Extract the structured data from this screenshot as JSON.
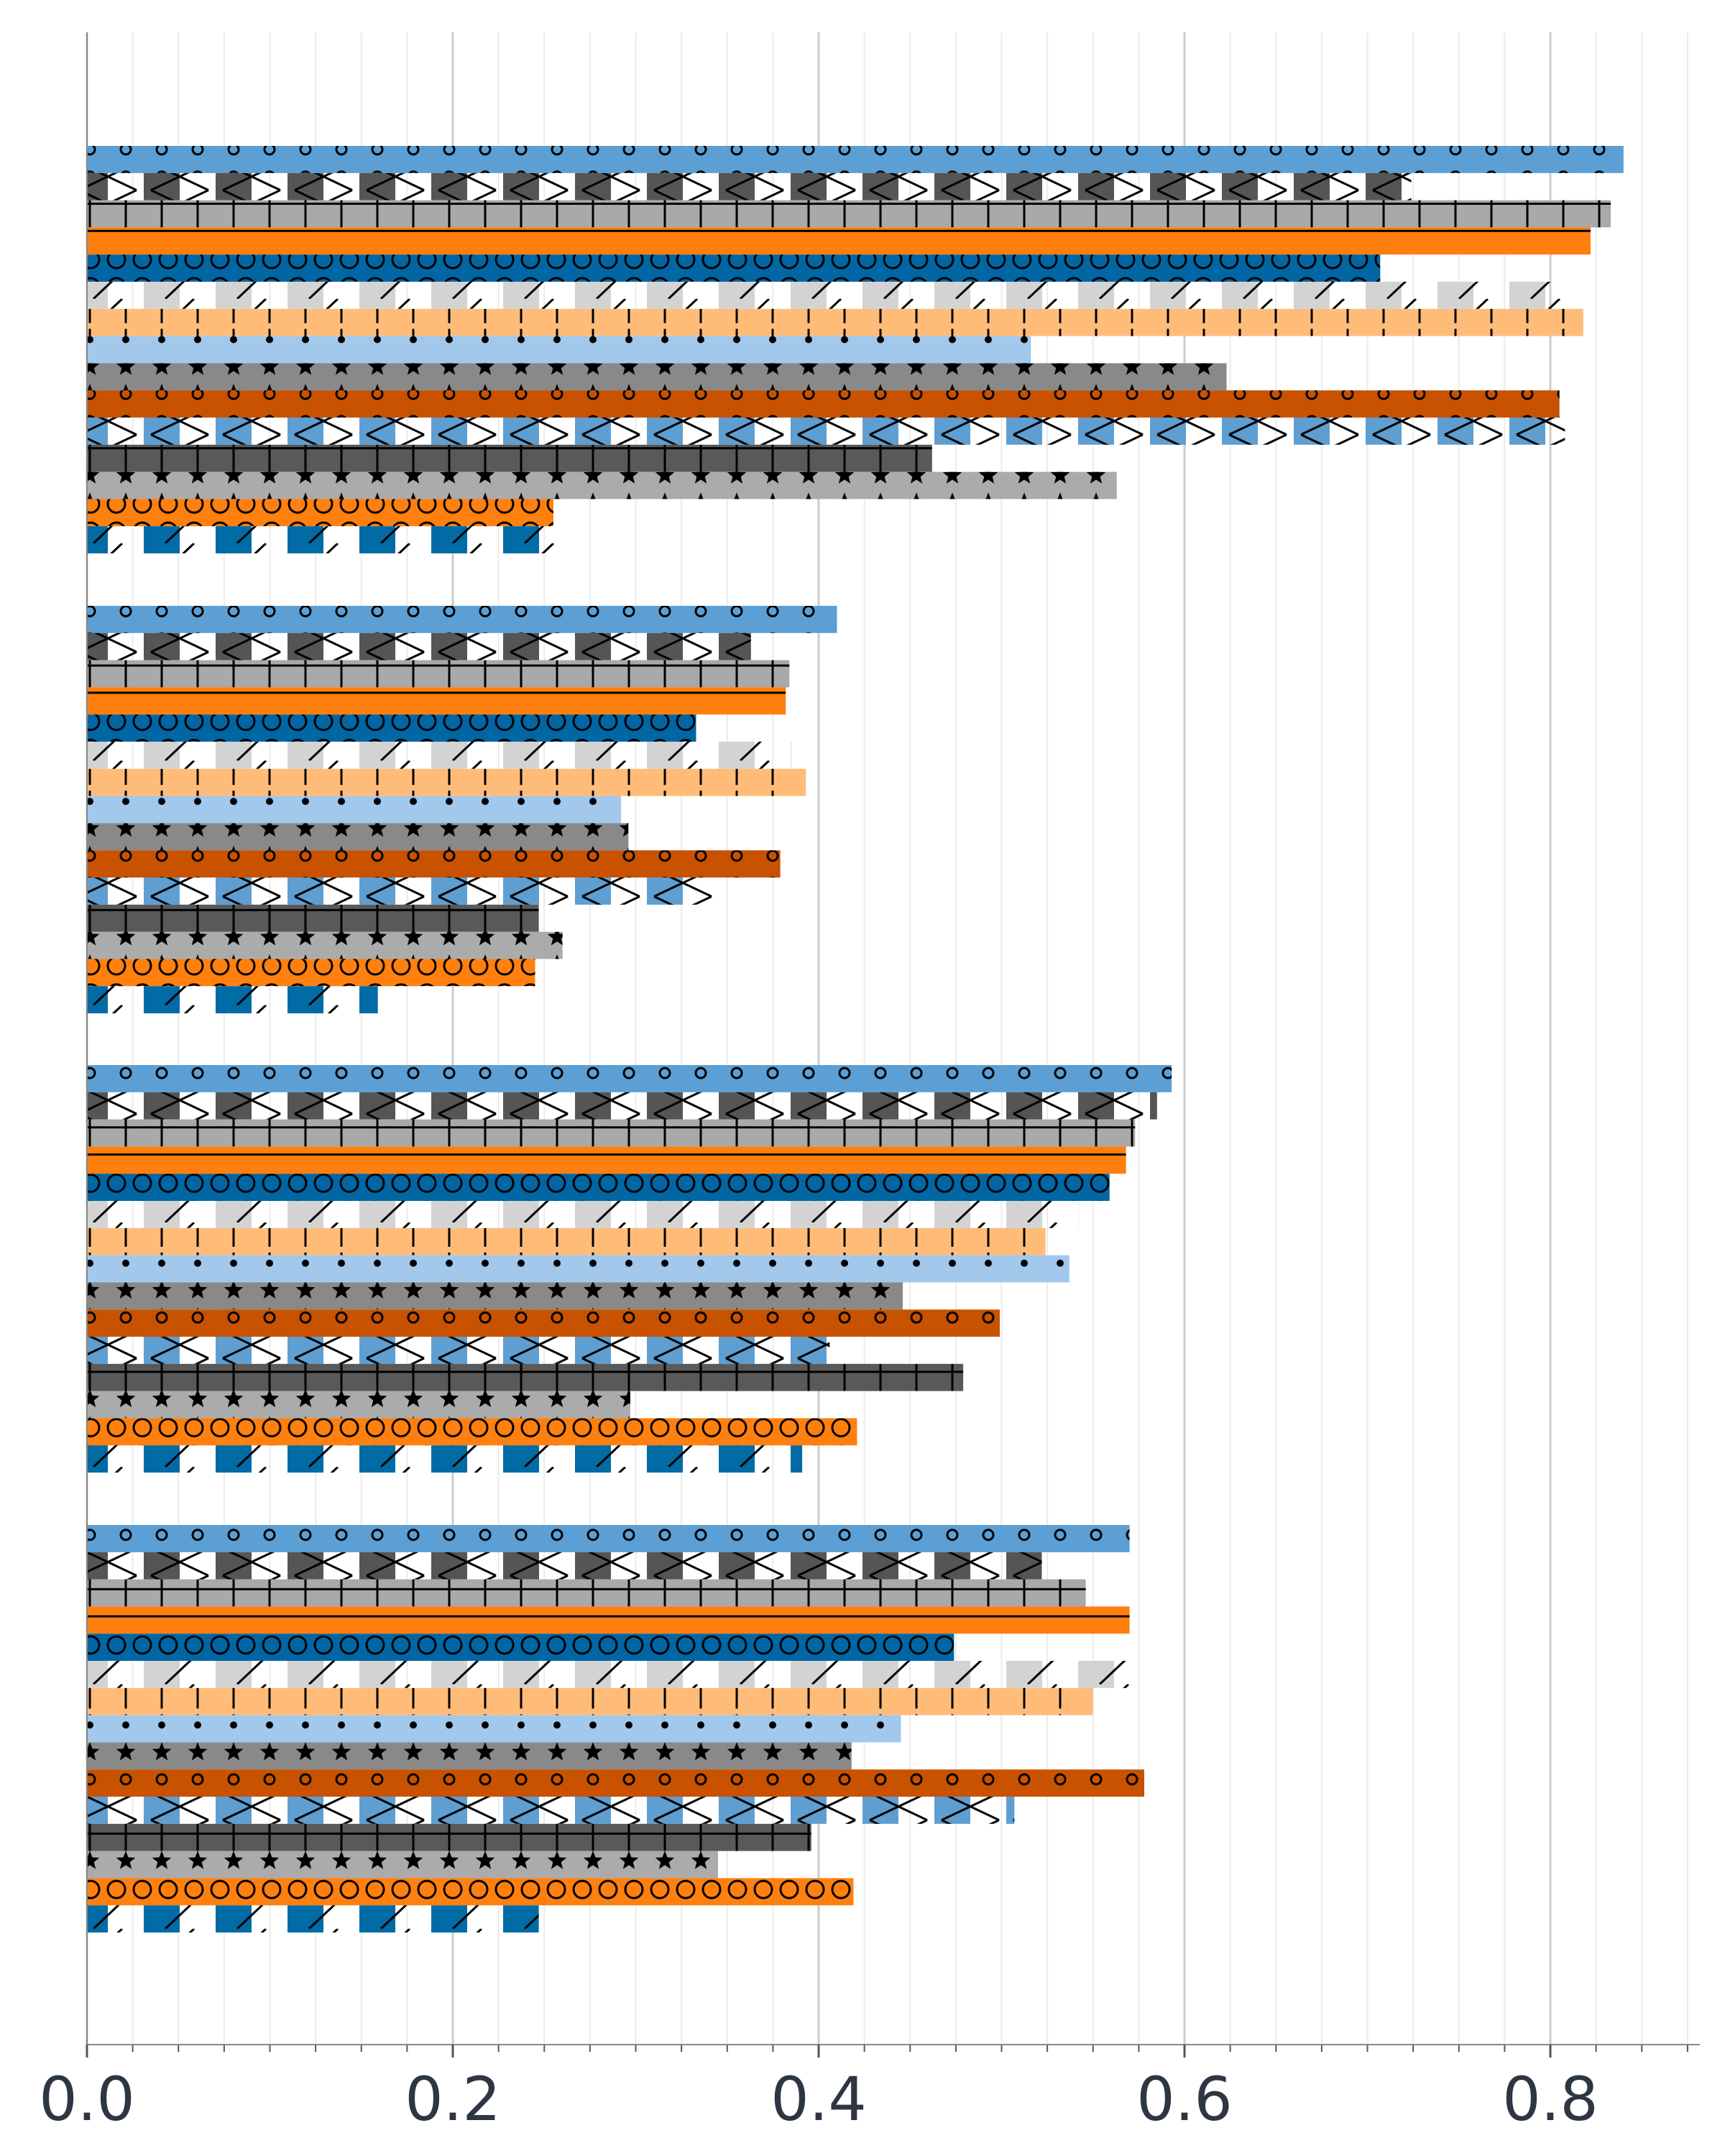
{
  "chart_data": {
    "type": "bar",
    "orientation": "horizontal",
    "title": "",
    "xlabel": "",
    "ylabel": "",
    "xlim": [
      0,
      0.88
    ],
    "x_ticks": [
      0.0,
      0.2,
      0.4,
      0.6,
      0.8
    ],
    "x_tick_labels": [
      "0.0",
      "0.2",
      "0.4",
      "0.6",
      "0.8"
    ],
    "x_minor_step": 0.025,
    "grid": {
      "major": true,
      "minor": true,
      "axis": "x"
    },
    "legend": "none",
    "group_count": 4,
    "group_labels": [
      "",
      "",
      "",
      ""
    ],
    "series_styles": [
      {
        "color": "#5b9fd4",
        "pattern": "small-circles"
      },
      {
        "color": "#555555",
        "pattern": "crosses"
      },
      {
        "color": "#a9a9a9",
        "pattern": "grid"
      },
      {
        "color": "#ff7f0e",
        "pattern": "horizontal-line"
      },
      {
        "color": "#0066a4",
        "pattern": "large-circles"
      },
      {
        "color": "#d3d3d3",
        "pattern": "diagonal"
      },
      {
        "color": "#ffbc79",
        "pattern": "vertical"
      },
      {
        "color": "#a2c8ec",
        "pattern": "dots"
      },
      {
        "color": "#898989",
        "pattern": "stars"
      },
      {
        "color": "#c85200",
        "pattern": "small-circles"
      },
      {
        "color": "#5f9ed1",
        "pattern": "crosses"
      },
      {
        "color": "#595959",
        "pattern": "grid"
      },
      {
        "color": "#ababab",
        "pattern": "stars"
      },
      {
        "color": "#ff800e",
        "pattern": "large-circles"
      },
      {
        "color": "#006ba4",
        "pattern": "diagonal"
      }
    ],
    "groups": [
      {
        "values": [
          0.84,
          0.724,
          0.833,
          0.822,
          0.707,
          0.81,
          0.818,
          0.516,
          0.623,
          0.805,
          0.808,
          0.462,
          0.563,
          0.255,
          0.264
        ]
      },
      {
        "values": [
          0.41,
          0.363,
          0.384,
          0.382,
          0.333,
          0.385,
          0.393,
          0.292,
          0.296,
          0.379,
          0.345,
          0.247,
          0.26,
          0.245,
          0.159
        ]
      },
      {
        "values": [
          0.593,
          0.585,
          0.573,
          0.568,
          0.559,
          0.542,
          0.524,
          0.537,
          0.446,
          0.499,
          0.406,
          0.479,
          0.297,
          0.421,
          0.391
        ]
      },
      {
        "values": [
          0.57,
          0.522,
          0.546,
          0.57,
          0.474,
          0.577,
          0.55,
          0.445,
          0.418,
          0.578,
          0.507,
          0.396,
          0.345,
          0.419,
          0.247
        ]
      }
    ]
  }
}
